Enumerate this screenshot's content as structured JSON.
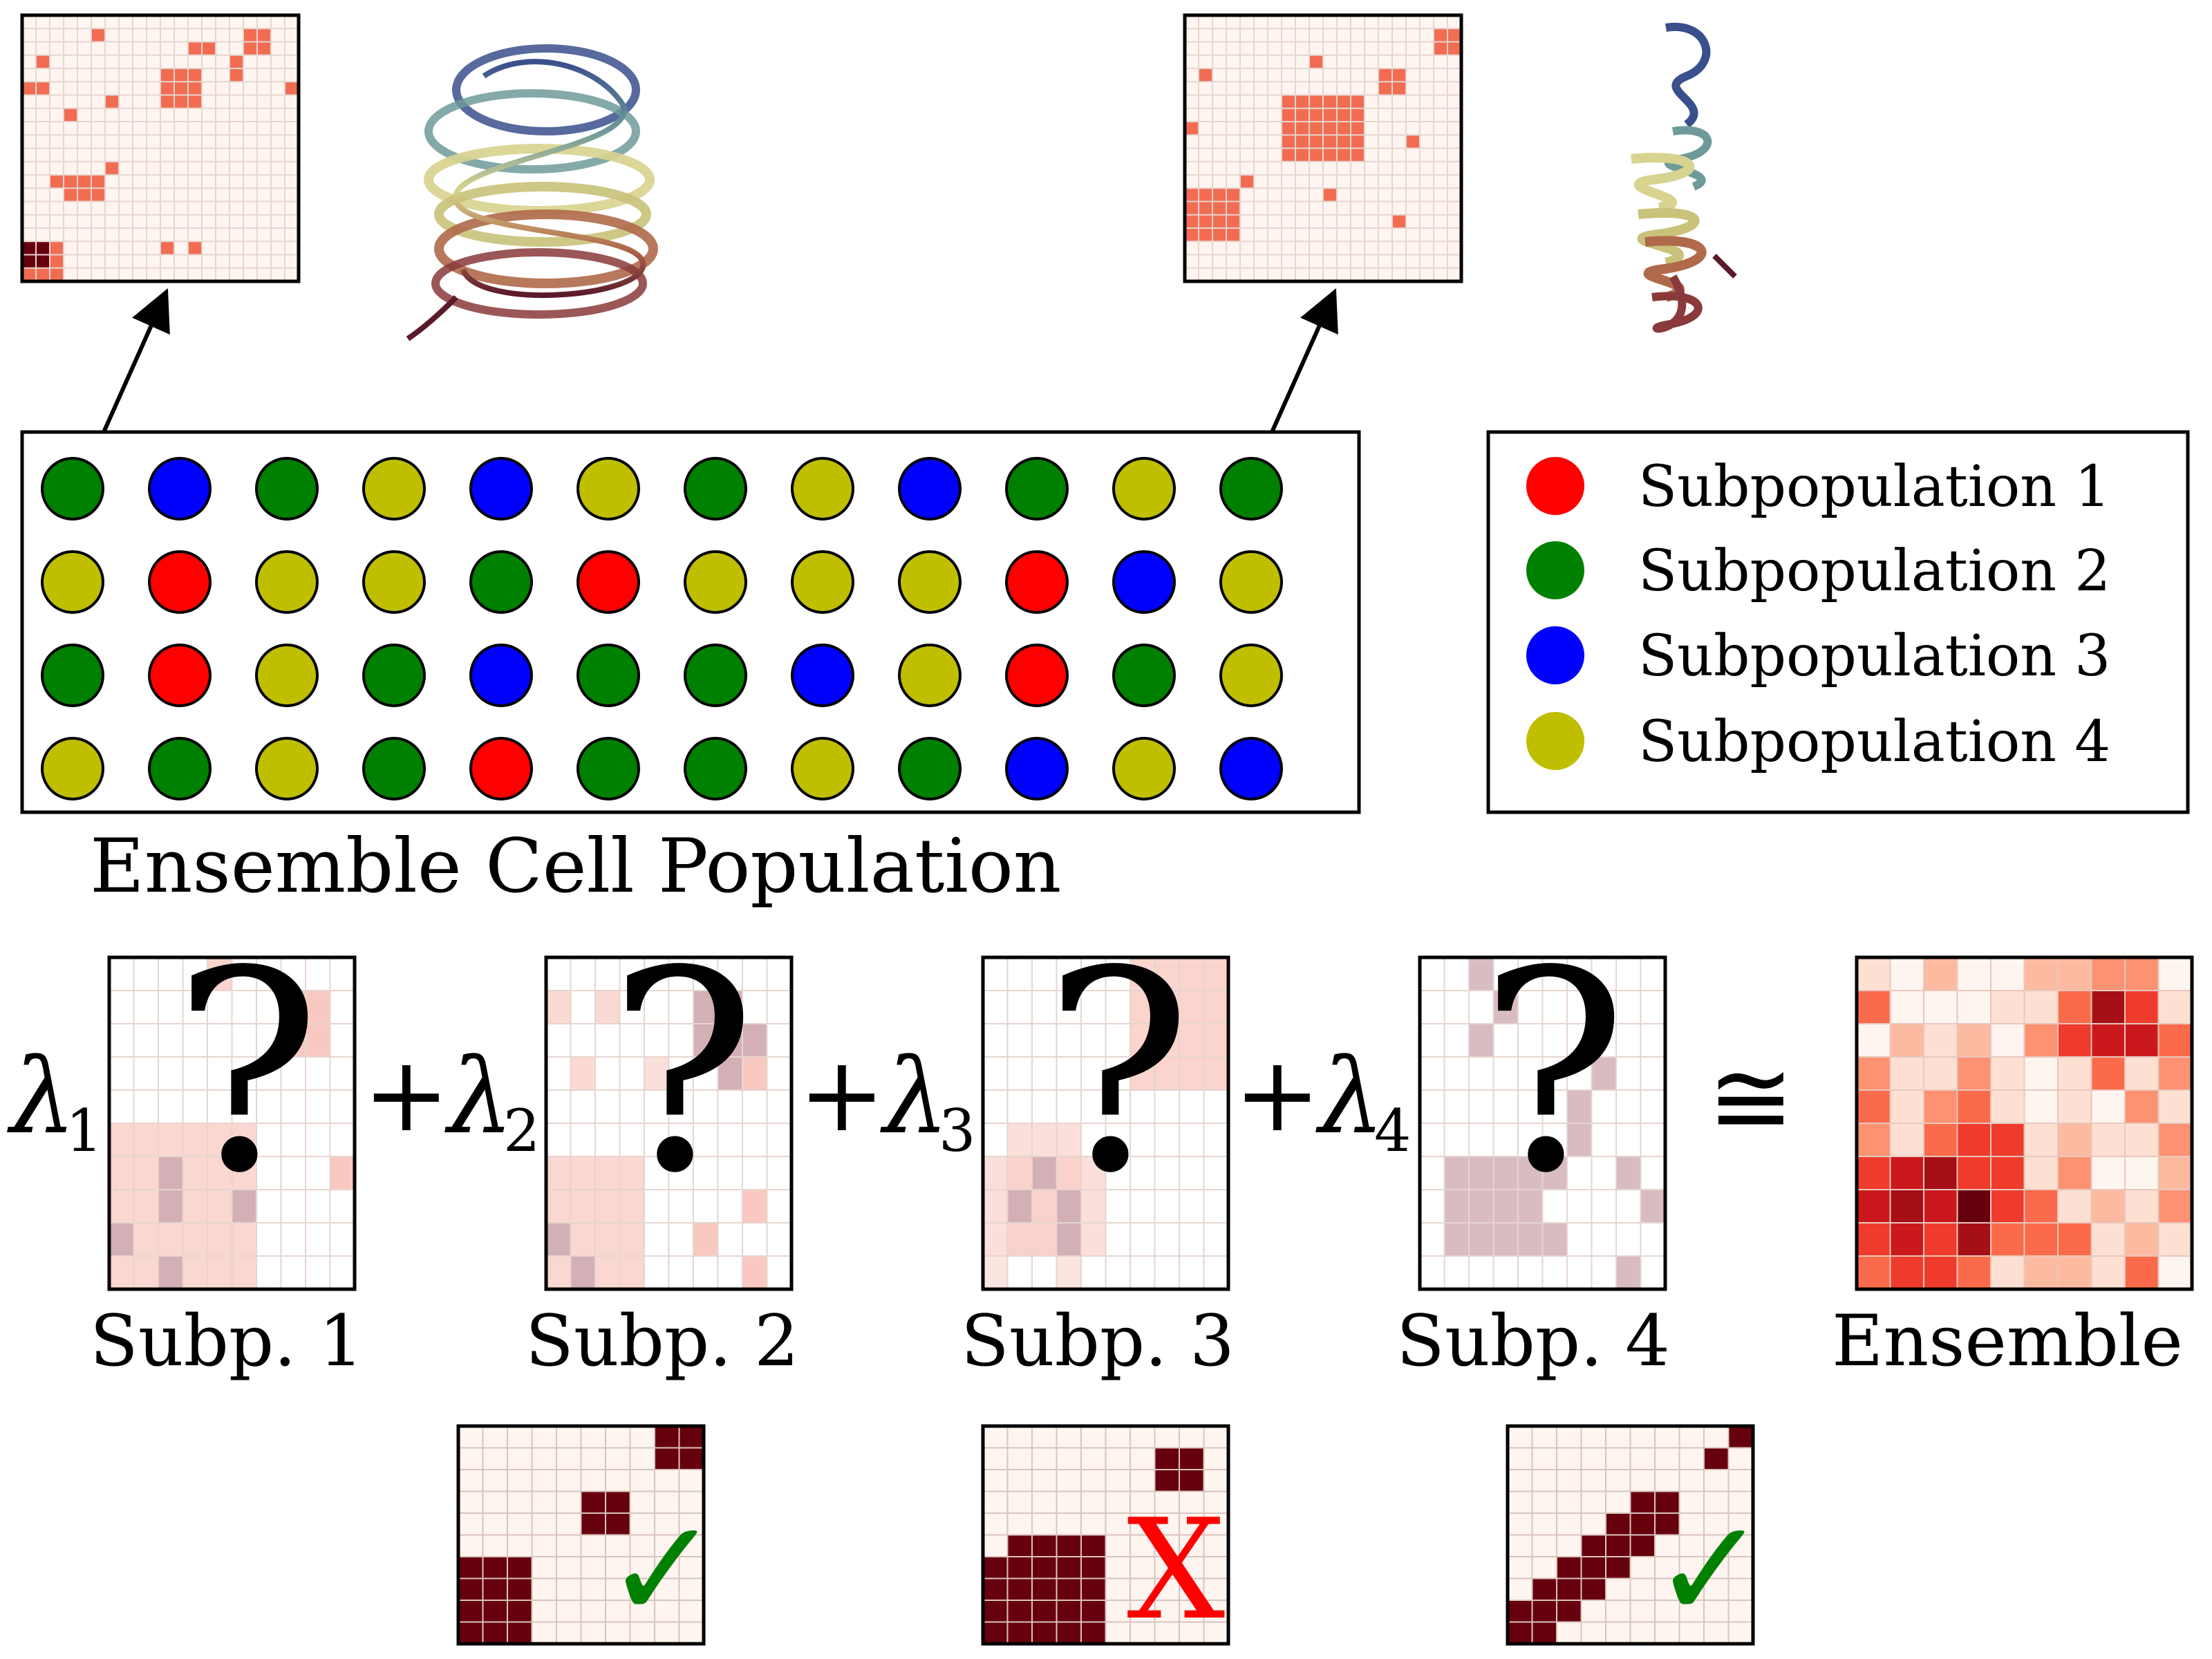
{
  "title": "",
  "population": {
    "label": "Ensemble Cell Population",
    "rows": [
      [
        2,
        3,
        2,
        4,
        3,
        4,
        2,
        4,
        3,
        2,
        4,
        2
      ],
      [
        4,
        1,
        4,
        4,
        2,
        1,
        4,
        4,
        4,
        1,
        3,
        4
      ],
      [
        2,
        1,
        4,
        2,
        3,
        2,
        2,
        3,
        4,
        1,
        2,
        4
      ],
      [
        4,
        2,
        4,
        2,
        1,
        2,
        2,
        4,
        2,
        3,
        4,
        3
      ]
    ]
  },
  "legend": {
    "items": [
      {
        "id": 1,
        "label": "Subpopulation 1",
        "color": "#ff0000"
      },
      {
        "id": 2,
        "label": "Subpopulation 2",
        "color": "#008000"
      },
      {
        "id": 3,
        "label": "Subpopulation 3",
        "color": "#0000ff"
      },
      {
        "id": 4,
        "label": "Subpopulation 4",
        "color": "#bfbf00"
      }
    ]
  },
  "colors": {
    "cell_bg": "#fff5f0",
    "contact": "#f26c52",
    "contact_dark": "#67000d",
    "grid_line": "#e6d5cf",
    "subp_tint": "#f9c9c1",
    "subp_mauve": "#d2b0b6",
    "subp4_tint": "#d8bcc2",
    "check": "#008000",
    "cross": "#ff0000"
  },
  "equation": {
    "lambda_symbol": "λ",
    "subscripts": [
      "1",
      "2",
      "3",
      "4"
    ],
    "plus": "+",
    "approx": "≅",
    "question": "?",
    "labels": [
      "Subp. 1",
      "Subp. 2",
      "Subp. 3",
      "Subp. 4",
      "Ensemble"
    ]
  },
  "verdicts": {
    "left": "✓",
    "middle": "X",
    "right": "✓"
  },
  "icons": {
    "arrow": "arrow-icon",
    "protein": "protein-structure-icon",
    "check": "checkmark-icon",
    "cross": "cross-icon"
  }
}
